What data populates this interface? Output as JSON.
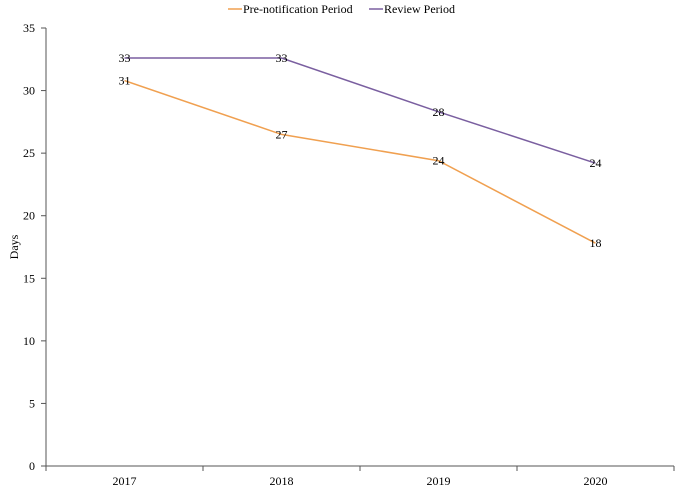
{
  "chart_data": {
    "type": "line",
    "title": "",
    "xlabel": "",
    "ylabel": "Days",
    "categories": [
      "2017",
      "2018",
      "2019",
      "2020"
    ],
    "ylim": [
      0,
      35
    ],
    "yticks": [
      0,
      5,
      10,
      15,
      20,
      25,
      30,
      35
    ],
    "grid": false,
    "legend_position": "top-center",
    "series": [
      {
        "name": "Pre-notification Period",
        "color": "#f0a050",
        "values": [
          30.8,
          26.5,
          24.4,
          17.8
        ],
        "labels": [
          "31",
          "27",
          "24",
          "18"
        ]
      },
      {
        "name": "Review Period",
        "color": "#7a5fa0",
        "values": [
          32.6,
          32.6,
          28.3,
          24.2
        ],
        "labels": [
          "33",
          "33",
          "28",
          "24"
        ]
      }
    ]
  }
}
